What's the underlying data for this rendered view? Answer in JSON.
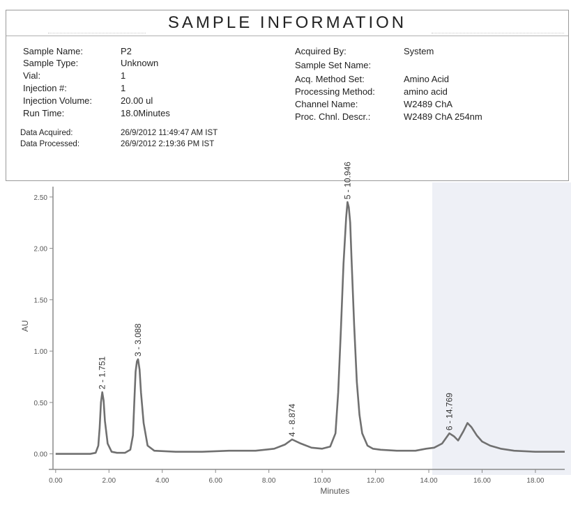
{
  "sample_info": {
    "title": "SAMPLE INFORMATION",
    "left_fields": [
      {
        "label": "Sample Name:",
        "value": "P2"
      },
      {
        "label": "Sample Type:",
        "value": "Unknown"
      },
      {
        "label": "Vial:",
        "value": "1"
      },
      {
        "label": "Injection #:",
        "value": "1"
      },
      {
        "label": "Injection Volume:",
        "value": "20.00 ul"
      },
      {
        "label": "Run Time:",
        "value": "18.0Minutes"
      }
    ],
    "date_fields": [
      {
        "label": "Data Acquired:",
        "value": "26/9/2012 11:49:47 AM IST"
      },
      {
        "label": "Data Processed:",
        "value": "26/9/2012 2:19:36 PM IST"
      }
    ],
    "right_fields": [
      {
        "label": "Acquired By:",
        "value": "System"
      },
      {
        "label": "Sample Set Name:",
        "value": ""
      },
      {
        "label": "Acq. Method Set:",
        "value": "Amino Acid"
      },
      {
        "label": "Processing Method:",
        "value": "amino acid"
      },
      {
        "label": "Channel Name:",
        "value": "W2489 ChA"
      },
      {
        "label": "Proc. Chnl. Descr.:",
        "value": "W2489 ChA 254nm"
      }
    ]
  },
  "chart_data": {
    "type": "line",
    "xlabel": "Minutes",
    "ylabel": "AU",
    "xlim": [
      -0.1,
      19.1
    ],
    "ylim": [
      -0.07,
      2.56
    ],
    "x_ticks": [
      "0.00",
      "2.00",
      "4.00",
      "6.00",
      "8.00",
      "10.00",
      "12.00",
      "14.00",
      "16.00",
      "18.00"
    ],
    "x_tick_values": [
      0,
      2,
      4,
      6,
      8,
      10,
      12,
      14,
      16,
      18
    ],
    "y_ticks": [
      "0.00",
      "0.50",
      "1.00",
      "1.50",
      "2.00",
      "2.50"
    ],
    "y_tick_values": [
      0,
      0.5,
      1.0,
      1.5,
      2.0,
      2.5
    ],
    "grid": false,
    "line_color": "#707070",
    "series": [
      {
        "x": [
          0,
          0.5,
          1.0,
          1.3,
          1.5,
          1.6,
          1.65,
          1.7,
          1.75,
          1.8,
          1.85,
          1.95,
          2.1,
          2.3,
          2.6,
          2.8,
          2.9,
          2.95,
          3.0,
          3.05,
          3.09,
          3.15,
          3.2,
          3.3,
          3.45,
          3.7,
          4.5,
          5.5,
          6.5,
          7.5,
          8.2,
          8.6,
          8.87,
          9.2,
          9.6,
          10.0,
          10.3,
          10.5,
          10.6,
          10.7,
          10.8,
          10.9,
          10.95,
          11.0,
          11.05,
          11.1,
          11.2,
          11.3,
          11.4,
          11.5,
          11.7,
          11.9,
          12.2,
          12.8,
          13.5,
          13.9,
          14.2,
          14.5,
          14.77,
          14.95,
          15.1,
          15.3,
          15.45,
          15.6,
          15.8,
          16.0,
          16.3,
          16.7,
          17.2,
          18.0,
          19.1
        ],
        "y": [
          0.0,
          0.0,
          0.0,
          0.0,
          0.01,
          0.08,
          0.25,
          0.5,
          0.6,
          0.52,
          0.32,
          0.1,
          0.02,
          0.01,
          0.01,
          0.04,
          0.18,
          0.5,
          0.8,
          0.9,
          0.92,
          0.82,
          0.6,
          0.3,
          0.08,
          0.03,
          0.02,
          0.02,
          0.03,
          0.03,
          0.05,
          0.09,
          0.14,
          0.1,
          0.06,
          0.05,
          0.07,
          0.2,
          0.6,
          1.2,
          1.85,
          2.3,
          2.45,
          2.4,
          2.25,
          1.9,
          1.25,
          0.7,
          0.38,
          0.2,
          0.08,
          0.05,
          0.04,
          0.03,
          0.03,
          0.05,
          0.06,
          0.1,
          0.2,
          0.17,
          0.13,
          0.22,
          0.3,
          0.26,
          0.18,
          0.12,
          0.08,
          0.05,
          0.03,
          0.02,
          0.02
        ]
      }
    ],
    "peaks": [
      {
        "x": 1.751,
        "y": 0.6,
        "label": "2 - 1.751"
      },
      {
        "x": 3.088,
        "y": 0.92,
        "label": "3 - 3.088"
      },
      {
        "x": 8.874,
        "y": 0.14,
        "label": "4 - 8.874"
      },
      {
        "x": 10.946,
        "y": 2.45,
        "label": "5 - 10.946"
      },
      {
        "x": 14.769,
        "y": 0.2,
        "label": "6 - 14.769"
      }
    ]
  }
}
